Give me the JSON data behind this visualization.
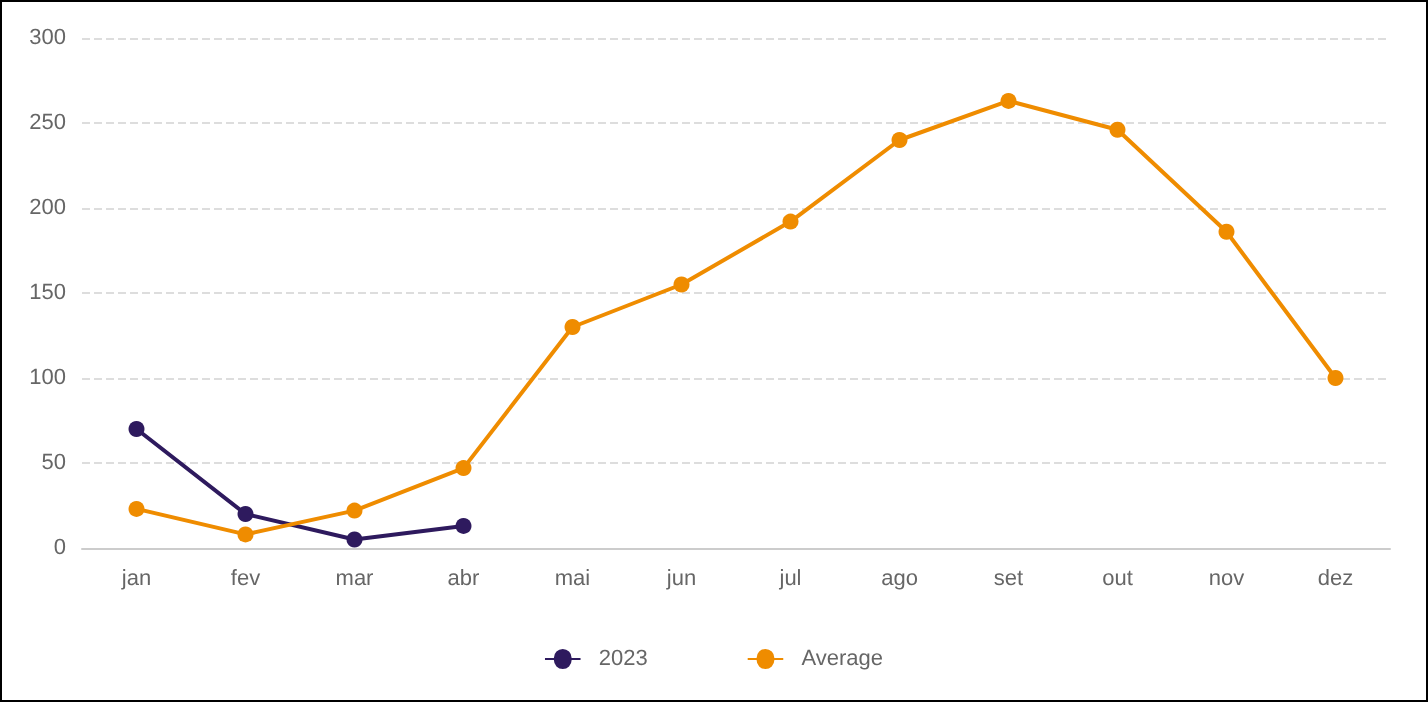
{
  "chart_data": {
    "type": "line",
    "categories": [
      "jan",
      "fev",
      "mar",
      "abr",
      "mai",
      "jun",
      "jul",
      "ago",
      "set",
      "out",
      "nov",
      "dez"
    ],
    "series": [
      {
        "name": "2023",
        "color": "#2e1a5e",
        "values": [
          70,
          20,
          5,
          13,
          null,
          null,
          null,
          null,
          null,
          null,
          null,
          null
        ]
      },
      {
        "name": "Average",
        "color": "#ef8c00",
        "values": [
          23,
          8,
          22,
          47,
          130,
          155,
          192,
          240,
          263,
          246,
          186,
          100
        ]
      }
    ],
    "ylim": [
      0,
      300
    ],
    "yticks": [
      0,
      50,
      100,
      150,
      200,
      250,
      300
    ],
    "grid": "y",
    "legend": "bottom",
    "marker": "circle",
    "line_style": "solid"
  }
}
